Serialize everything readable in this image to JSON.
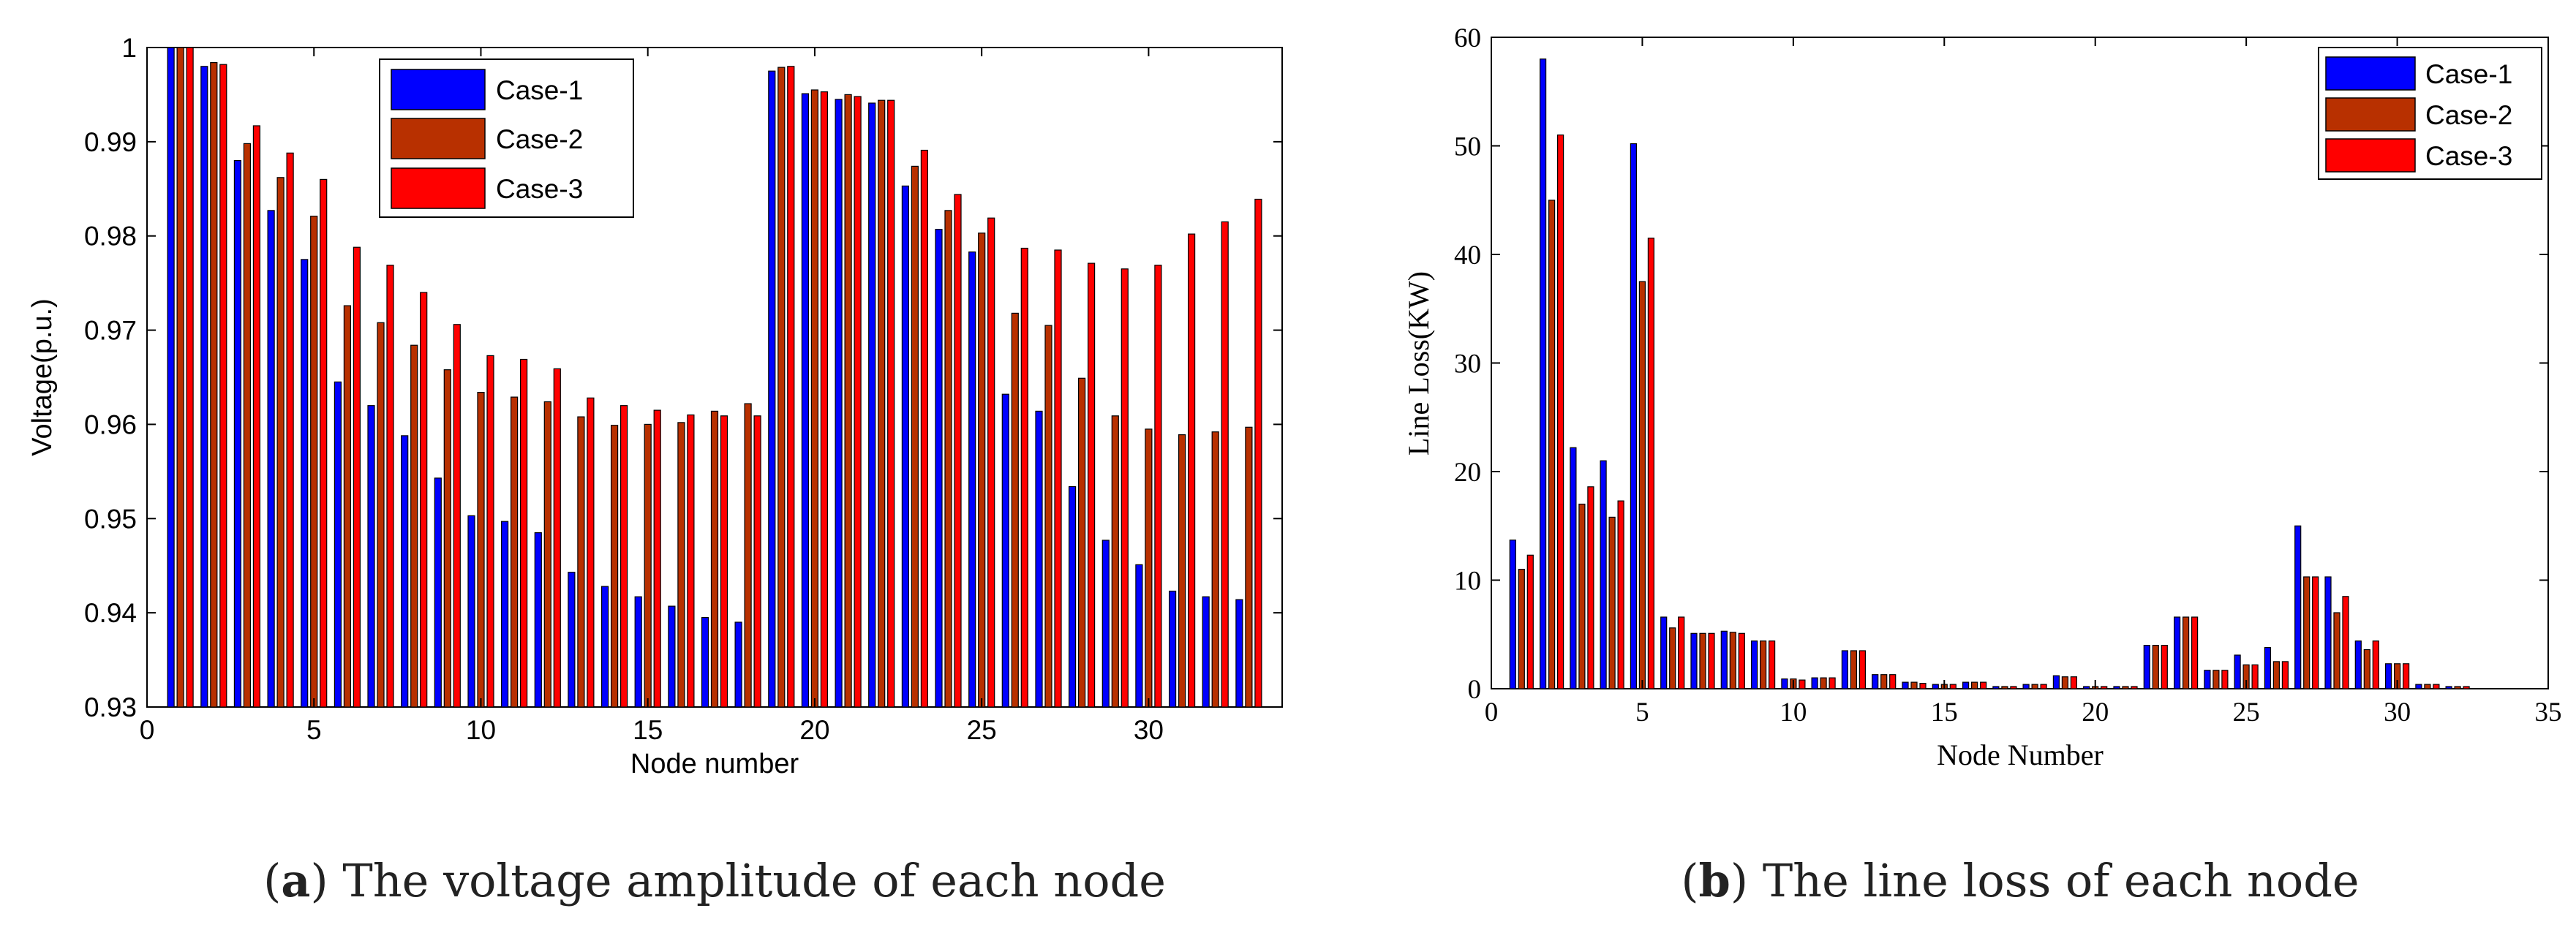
{
  "colors": {
    "case1": "#0000ff",
    "case2": "#b83000",
    "case3": "#ff0000"
  },
  "chart_data": [
    {
      "type": "bar",
      "xlabel": "Node number",
      "ylabel": "Voltage(p.u.)",
      "ylim": [
        0.93,
        1.0
      ],
      "xlim": [
        0,
        34
      ],
      "xticks": [
        0,
        5,
        10,
        15,
        20,
        25,
        30
      ],
      "yticks": [
        0.93,
        0.94,
        0.95,
        0.96,
        0.97,
        0.98,
        0.99,
        1
      ],
      "ytick_labels": [
        "0.93",
        "0.94",
        "0.95",
        "0.96",
        "0.97",
        "0.98",
        "0.99",
        "1"
      ],
      "legend": [
        "Case-1",
        "Case-2",
        "Case-3"
      ],
      "legend_position": "top-center",
      "caption_label": "a",
      "caption_text": " The voltage amplitude of each node",
      "categories": [
        1,
        2,
        3,
        4,
        5,
        6,
        7,
        8,
        9,
        10,
        11,
        12,
        13,
        14,
        15,
        16,
        17,
        18,
        19,
        20,
        21,
        22,
        23,
        24,
        25,
        26,
        27,
        28,
        29,
        30,
        31,
        32,
        33
      ],
      "series": [
        {
          "name": "Case-1",
          "values": [
            1.0,
            0.998,
            0.988,
            0.9827,
            0.9775,
            0.9645,
            0.962,
            0.9588,
            0.9543,
            0.9503,
            0.9497,
            0.9485,
            0.9443,
            0.9428,
            0.9417,
            0.9407,
            0.9395,
            0.939,
            0.9975,
            0.9951,
            0.9945,
            0.9941,
            0.9853,
            0.9807,
            0.9783,
            0.9632,
            0.9614,
            0.9534,
            0.9477,
            0.9451,
            0.9423,
            0.9417,
            0.9414
          ]
        },
        {
          "name": "Case-2",
          "values": [
            1.0,
            0.9984,
            0.9898,
            0.9862,
            0.9821,
            0.9726,
            0.9708,
            0.9684,
            0.9658,
            0.9634,
            0.9629,
            0.9624,
            0.9608,
            0.9599,
            0.96,
            0.9602,
            0.9614,
            0.9622,
            0.9979,
            0.9955,
            0.995,
            0.9944,
            0.9874,
            0.9827,
            0.9803,
            0.9718,
            0.9705,
            0.9649,
            0.9609,
            0.9595,
            0.9589,
            0.9592,
            0.9597
          ]
        },
        {
          "name": "Case-3",
          "values": [
            1.0,
            0.9982,
            0.9917,
            0.9888,
            0.986,
            0.9788,
            0.9769,
            0.974,
            0.9706,
            0.9673,
            0.9669,
            0.9659,
            0.9628,
            0.962,
            0.9615,
            0.961,
            0.9609,
            0.9609,
            0.998,
            0.9953,
            0.9948,
            0.9944,
            0.9891,
            0.9844,
            0.9819,
            0.9787,
            0.9785,
            0.9771,
            0.9765,
            0.9769,
            0.9802,
            0.9815,
            0.9839
          ]
        }
      ]
    },
    {
      "type": "bar",
      "xlabel": "Node Number",
      "ylabel": "Line Loss(KW)",
      "ylim": [
        0,
        60
      ],
      "xlim": [
        0,
        35
      ],
      "xticks": [
        0,
        5,
        10,
        15,
        20,
        25,
        30,
        35
      ],
      "yticks": [
        0,
        10,
        20,
        30,
        40,
        50,
        60
      ],
      "ytick_labels": [
        "0",
        "10",
        "20",
        "30",
        "40",
        "50",
        "60"
      ],
      "legend": [
        "Case-1",
        "Case-2",
        "Case-3"
      ],
      "legend_position": "top-right",
      "caption_label": "b",
      "caption_text": " The line loss of each node",
      "categories": [
        1,
        2,
        3,
        4,
        5,
        6,
        7,
        8,
        9,
        10,
        11,
        12,
        13,
        14,
        15,
        16,
        17,
        18,
        19,
        20,
        21,
        22,
        23,
        24,
        25,
        26,
        27,
        28,
        29,
        30,
        31,
        32
      ],
      "series": [
        {
          "name": "Case-1",
          "values": [
            13.7,
            58.0,
            22.2,
            21.0,
            50.2,
            6.6,
            5.1,
            5.3,
            4.4,
            0.9,
            1.0,
            3.5,
            1.3,
            0.6,
            0.4,
            0.6,
            0.2,
            0.4,
            1.2,
            0.2,
            0.2,
            4.0,
            6.6,
            1.7,
            3.1,
            3.8,
            15.0,
            10.3,
            4.4,
            2.3,
            0.4,
            0.2
          ]
        },
        {
          "name": "Case-2",
          "values": [
            11.0,
            45.0,
            17.0,
            15.8,
            37.5,
            5.6,
            5.1,
            5.2,
            4.4,
            0.9,
            1.0,
            3.5,
            1.3,
            0.6,
            0.4,
            0.6,
            0.2,
            0.4,
            1.1,
            0.2,
            0.2,
            4.0,
            6.6,
            1.7,
            2.2,
            2.5,
            10.3,
            7.0,
            3.6,
            2.3,
            0.4,
            0.2
          ]
        },
        {
          "name": "Case-3",
          "values": [
            12.3,
            51.0,
            18.6,
            17.3,
            41.5,
            6.6,
            5.1,
            5.1,
            4.4,
            0.8,
            1.0,
            3.5,
            1.3,
            0.5,
            0.4,
            0.6,
            0.2,
            0.4,
            1.1,
            0.2,
            0.2,
            4.0,
            6.6,
            1.7,
            2.2,
            2.5,
            10.3,
            8.5,
            4.4,
            2.3,
            0.4,
            0.2
          ]
        }
      ]
    }
  ]
}
